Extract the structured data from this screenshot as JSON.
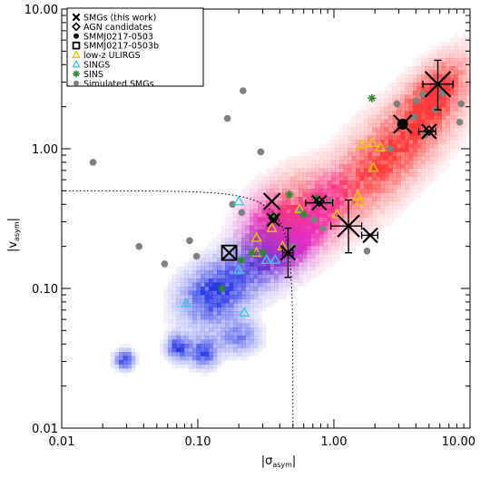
{
  "chart_data": {
    "type": "scatter",
    "x_scale": "log",
    "y_scale": "log",
    "xlim": [
      0.01,
      10.0
    ],
    "ylim": [
      0.01,
      10.0
    ],
    "xlabel": "|σ",
    "xlabel_sub": "asym",
    "xlabel_end": "|",
    "ylabel": "|v",
    "ylabel_sub": "asym",
    "ylabel_end": "|",
    "x_ticks": [
      {
        "value": 0.01,
        "label": "0.01"
      },
      {
        "value": 0.1,
        "label": "0.10"
      },
      {
        "value": 1.0,
        "label": "1.00"
      },
      {
        "value": 10.0,
        "label": "10.00"
      }
    ],
    "y_ticks": [
      {
        "value": 0.01,
        "label": "0.01"
      },
      {
        "value": 0.1,
        "label": "0.10"
      },
      {
        "value": 1.0,
        "label": "1.00"
      },
      {
        "value": 10.0,
        "label": "10.00"
      }
    ],
    "legend_position": "top-left",
    "legend": [
      {
        "label": "SMGs (this work)",
        "marker": "x",
        "color": "#000000"
      },
      {
        "label": "AGN candidates",
        "marker": "diamond",
        "color": "#000000"
      },
      {
        "label": "SMMJ0217-0503",
        "marker": "filled-circle",
        "color": "#000000"
      },
      {
        "label": "SMMJ0217-0503b",
        "marker": "open-square",
        "color": "#000000"
      },
      {
        "label": "low-z ULIRGS",
        "marker": "triangle",
        "color": "#e6c800"
      },
      {
        "label": "SINGS",
        "marker": "triangle",
        "color": "#40c8e6"
      },
      {
        "label": "SINS",
        "marker": "asterisk",
        "color": "#2a8a2a"
      },
      {
        "label": "Simulated SMGs",
        "marker": "filled-circle",
        "color": "#808080"
      }
    ],
    "boundary": {
      "x_max": 0.5,
      "y_max": 0.5
    },
    "density_populations": [
      {
        "name": "merger",
        "color": "#ff3232",
        "blobs": [
          {
            "x": 2.5,
            "y": 0.9,
            "sx": 0.34,
            "sy": 0.34,
            "rho": 0.78,
            "w": 1.0
          },
          {
            "x": 5.5,
            "y": 2.5,
            "sx": 0.14,
            "sy": 0.16,
            "rho": 0.55,
            "w": 0.9
          },
          {
            "x": 0.45,
            "y": 0.35,
            "sx": 0.18,
            "sy": 0.2,
            "rho": 0.4,
            "w": 0.6
          }
        ]
      },
      {
        "name": "disk",
        "color": "#1e2ee6",
        "blobs": [
          {
            "x": 0.13,
            "y": 0.09,
            "sx": 0.16,
            "sy": 0.14,
            "rho": 0.2,
            "w": 1.0
          },
          {
            "x": 0.29,
            "y": 0.16,
            "sx": 0.18,
            "sy": 0.15,
            "rho": 0.3,
            "w": 0.7
          },
          {
            "x": 0.029,
            "y": 0.031,
            "sx": 0.045,
            "sy": 0.045,
            "rho": 0.0,
            "w": 1.0
          },
          {
            "x": 0.072,
            "y": 0.038,
            "sx": 0.055,
            "sy": 0.06,
            "rho": 0.0,
            "w": 1.0
          },
          {
            "x": 0.11,
            "y": 0.035,
            "sx": 0.07,
            "sy": 0.07,
            "rho": 0.0,
            "w": 0.9
          },
          {
            "x": 0.2,
            "y": 0.045,
            "sx": 0.1,
            "sy": 0.08,
            "rho": 0.0,
            "w": 0.6
          }
        ]
      },
      {
        "name": "transition",
        "color": "#f020f0",
        "blobs": [
          {
            "x": 0.5,
            "y": 0.22,
            "sx": 0.14,
            "sy": 0.13,
            "rho": 0.3,
            "w": 0.9
          },
          {
            "x": 0.85,
            "y": 0.4,
            "sx": 0.12,
            "sy": 0.14,
            "rho": 0.4,
            "w": 0.55
          },
          {
            "x": 0.3,
            "y": 0.3,
            "sx": 0.12,
            "sy": 0.14,
            "rho": 0.2,
            "w": 0.5
          }
        ]
      }
    ],
    "series": [
      {
        "name": "SMGs (this work)",
        "marker": "x",
        "points": [
          {
            "x": 0.35,
            "y": 0.42,
            "size": 9
          },
          {
            "x": 0.36,
            "y": 0.31,
            "size": 7
          },
          {
            "x": 0.46,
            "y": 0.18,
            "size": 8,
            "xerr": [
              0.42,
              0.5
            ],
            "yerr": [
              0.12,
              0.27
            ]
          },
          {
            "x": 0.78,
            "y": 0.41,
            "size": 8,
            "xerr": [
              0.62,
              0.98
            ]
          },
          {
            "x": 1.28,
            "y": 0.28,
            "size": 12,
            "xerr": [
              0.95,
              1.6
            ],
            "yerr": [
              0.18,
              0.43
            ]
          },
          {
            "x": 1.85,
            "y": 0.24,
            "size": 8,
            "xerr": [
              1.6,
              2.1
            ]
          },
          {
            "x": 3.2,
            "y": 1.5,
            "size": 10
          },
          {
            "x": 5.0,
            "y": 1.33,
            "size": 8,
            "xerr": [
              4.2,
              5.6
            ]
          },
          {
            "x": 5.8,
            "y": 2.9,
            "size": 14,
            "xerr": [
              4.5,
              7.5
            ],
            "yerr": [
              1.9,
              4.3
            ]
          },
          {
            "x": 0.17,
            "y": 0.18,
            "size": 8
          }
        ]
      },
      {
        "name": "AGN candidates",
        "marker": "diamond",
        "points": [
          {
            "x": 0.36,
            "y": 0.32
          },
          {
            "x": 0.78,
            "y": 0.42
          },
          {
            "x": 5.0,
            "y": 1.35
          }
        ]
      },
      {
        "name": "SMMJ0217-0503",
        "marker": "filled-circle",
        "points": [
          {
            "x": 3.2,
            "y": 1.5
          }
        ]
      },
      {
        "name": "SMMJ0217-0503b",
        "marker": "open-square",
        "points": [
          {
            "x": 0.17,
            "y": 0.18
          }
        ]
      },
      {
        "name": "low-z ULIRGS",
        "marker": "triangle",
        "points": [
          {
            "x": 0.27,
            "y": 0.23
          },
          {
            "x": 0.35,
            "y": 0.27
          },
          {
            "x": 0.56,
            "y": 0.37
          },
          {
            "x": 1.05,
            "y": 0.34
          },
          {
            "x": 1.5,
            "y": 0.46
          },
          {
            "x": 1.55,
            "y": 0.42
          },
          {
            "x": 1.6,
            "y": 1.07
          },
          {
            "x": 1.9,
            "y": 1.1
          },
          {
            "x": 2.2,
            "y": 1.02
          },
          {
            "x": 1.95,
            "y": 0.73
          },
          {
            "x": 0.27,
            "y": 0.18
          },
          {
            "x": 0.42,
            "y": 0.2
          }
        ]
      },
      {
        "name": "SINGS",
        "marker": "triangle",
        "points": [
          {
            "x": 0.082,
            "y": 0.078
          },
          {
            "x": 0.2,
            "y": 0.42
          },
          {
            "x": 0.2,
            "y": 0.135
          },
          {
            "x": 0.22,
            "y": 0.067
          },
          {
            "x": 0.37,
            "y": 0.16
          },
          {
            "x": 0.32,
            "y": 0.16
          }
        ]
      },
      {
        "name": "SINS",
        "marker": "asterisk",
        "points": [
          {
            "x": 0.15,
            "y": 0.1
          },
          {
            "x": 0.47,
            "y": 0.47
          },
          {
            "x": 0.36,
            "y": 0.33
          },
          {
            "x": 0.3,
            "y": 0.18
          },
          {
            "x": 0.21,
            "y": 0.16
          },
          {
            "x": 0.25,
            "y": 0.18
          },
          {
            "x": 0.6,
            "y": 0.34
          },
          {
            "x": 1.9,
            "y": 2.3
          },
          {
            "x": 0.75,
            "y": 0.44
          }
        ]
      },
      {
        "name": "Simulated SMGs",
        "marker": "filled-circle",
        "points": [
          {
            "x": 0.017,
            "y": 0.8
          },
          {
            "x": 0.037,
            "y": 0.2
          },
          {
            "x": 0.057,
            "y": 0.15
          },
          {
            "x": 0.087,
            "y": 0.22
          },
          {
            "x": 0.098,
            "y": 0.17
          },
          {
            "x": 0.165,
            "y": 1.65
          },
          {
            "x": 0.215,
            "y": 2.6
          },
          {
            "x": 0.29,
            "y": 0.95
          },
          {
            "x": 0.18,
            "y": 0.4
          },
          {
            "x": 0.21,
            "y": 0.35
          },
          {
            "x": 0.5,
            "y": 0.2
          },
          {
            "x": 0.56,
            "y": 0.36
          },
          {
            "x": 0.72,
            "y": 0.31
          },
          {
            "x": 0.95,
            "y": 0.42
          },
          {
            "x": 0.83,
            "y": 0.27
          },
          {
            "x": 1.75,
            "y": 0.185
          },
          {
            "x": 2.6,
            "y": 1.0
          },
          {
            "x": 2.9,
            "y": 2.1
          },
          {
            "x": 4.05,
            "y": 2.2
          },
          {
            "x": 4.5,
            "y": 2.45
          },
          {
            "x": 3.9,
            "y": 1.7
          },
          {
            "x": 5.6,
            "y": 1.9
          },
          {
            "x": 6.3,
            "y": 2.5
          },
          {
            "x": 8.6,
            "y": 2.1
          },
          {
            "x": 8.4,
            "y": 1.55
          },
          {
            "x": 4.7,
            "y": 1.25
          }
        ]
      }
    ]
  }
}
